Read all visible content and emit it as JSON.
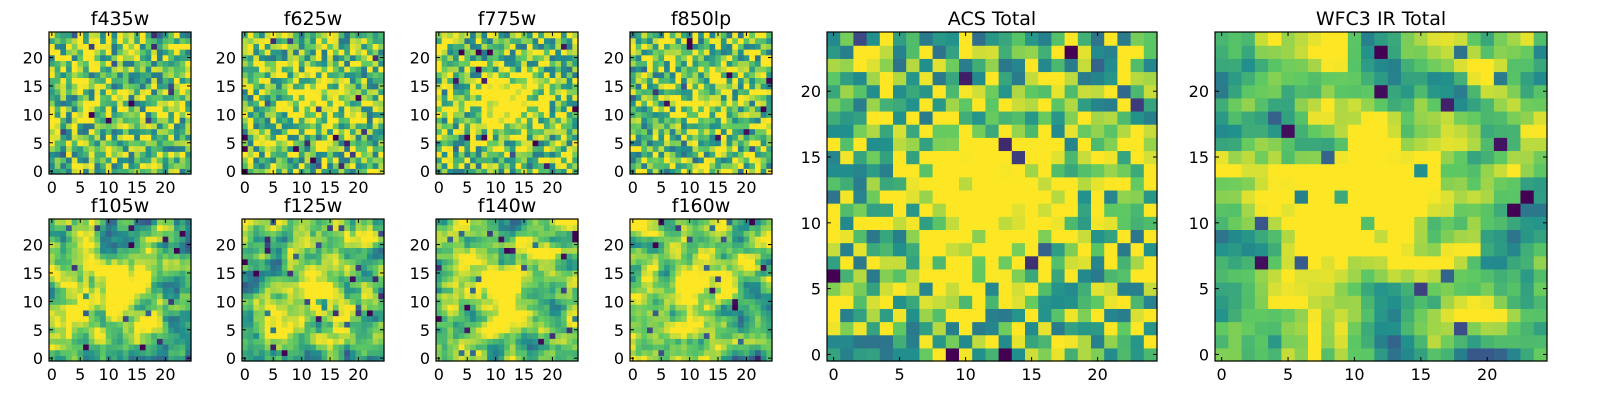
{
  "chart_data": [
    {
      "type": "heatmap",
      "title": "f435w",
      "xticks": [
        0,
        5,
        10,
        15,
        20
      ],
      "yticks": [
        0,
        5,
        10,
        15,
        20
      ],
      "grid_size": 25,
      "texture": "noise",
      "seed": 11,
      "hotspot": 0.0
    },
    {
      "type": "heatmap",
      "title": "f625w",
      "xticks": [
        0,
        5,
        10,
        15,
        20
      ],
      "yticks": [
        0,
        5,
        10,
        15,
        20
      ],
      "grid_size": 25,
      "texture": "noise",
      "seed": 23,
      "hotspot": 0.35
    },
    {
      "type": "heatmap",
      "title": "f775w",
      "xticks": [
        0,
        5,
        10,
        15,
        20
      ],
      "yticks": [
        0,
        5,
        10,
        15,
        20
      ],
      "grid_size": 25,
      "texture": "noise",
      "seed": 37,
      "hotspot": 0.55
    },
    {
      "type": "heatmap",
      "title": "f850lp",
      "xticks": [
        0,
        5,
        10,
        15,
        20
      ],
      "yticks": [
        0,
        5,
        10,
        15,
        20
      ],
      "grid_size": 25,
      "texture": "noise",
      "seed": 41,
      "hotspot": 0.2
    },
    {
      "type": "heatmap",
      "title": "f105w",
      "xticks": [
        0,
        5,
        10,
        15,
        20
      ],
      "yticks": [
        0,
        5,
        10,
        15,
        20
      ],
      "grid_size": 25,
      "texture": "smooth",
      "seed": 53,
      "hotspot": 0.4
    },
    {
      "type": "heatmap",
      "title": "f125w",
      "xticks": [
        0,
        5,
        10,
        15,
        20
      ],
      "yticks": [
        0,
        5,
        10,
        15,
        20
      ],
      "grid_size": 25,
      "texture": "smooth",
      "seed": 67,
      "hotspot": 0.35
    },
    {
      "type": "heatmap",
      "title": "f140w",
      "xticks": [
        0,
        5,
        10,
        15,
        20
      ],
      "yticks": [
        0,
        5,
        10,
        15,
        20
      ],
      "grid_size": 25,
      "texture": "smooth",
      "seed": 71,
      "hotspot": 0.4
    },
    {
      "type": "heatmap",
      "title": "f160w",
      "xticks": [
        0,
        5,
        10,
        15,
        20
      ],
      "yticks": [
        0,
        5,
        10,
        15,
        20
      ],
      "grid_size": 25,
      "texture": "smooth",
      "seed": 83,
      "hotspot": 0.5
    },
    {
      "type": "heatmap",
      "title": "ACS Total",
      "xticks": [
        0,
        5,
        10,
        15,
        20
      ],
      "yticks": [
        0,
        5,
        10,
        15,
        20
      ],
      "grid_size": 25,
      "texture": "noise",
      "seed": 97,
      "hotspot": 0.6
    },
    {
      "type": "heatmap",
      "title": "WFC3 IR Total",
      "xticks": [
        0,
        5,
        10,
        15,
        20
      ],
      "yticks": [
        0,
        5,
        10,
        15,
        20
      ],
      "grid_size": 25,
      "texture": "smooth",
      "seed": 101,
      "hotspot": 0.7
    }
  ],
  "colormap": [
    "#440154",
    "#3b528b",
    "#21908d",
    "#5dc863",
    "#fde725"
  ]
}
